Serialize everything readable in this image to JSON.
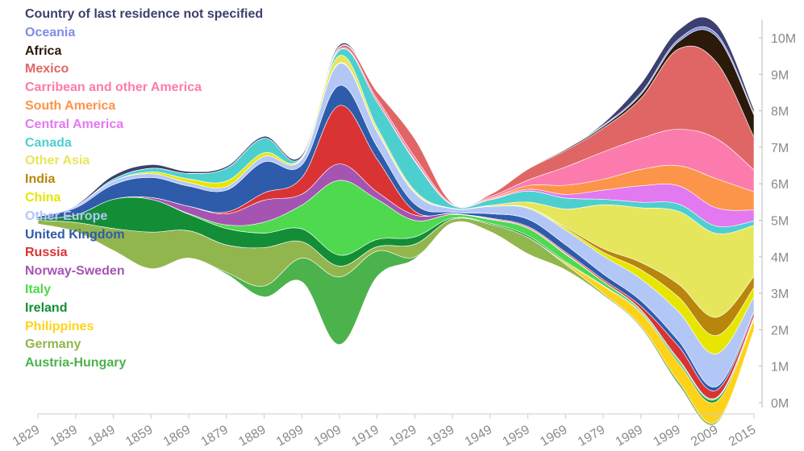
{
  "chart_data": {
    "type": "area",
    "layout": "streamgraph",
    "x": [
      "1829",
      "1839",
      "1849",
      "1859",
      "1869",
      "1879",
      "1889",
      "1899",
      "1909",
      "1919",
      "1929",
      "1939",
      "1949",
      "1959",
      "1969",
      "1979",
      "1989",
      "1999",
      "2009",
      "2015"
    ],
    "y_ticks": [
      "0M",
      "1M",
      "2M",
      "3M",
      "4M",
      "5M",
      "6M",
      "7M",
      "8M",
      "9M",
      "10M"
    ],
    "ylim": [
      0,
      10.5
    ],
    "legend_placement": "top-left",
    "series": [
      {
        "name": "Austria-Hungary",
        "color": "#4cb24c",
        "values": [
          0,
          0,
          0,
          0,
          0,
          0.05,
          0.3,
          0.65,
          1.85,
          0.7,
          0.05,
          0,
          0,
          0,
          0,
          0,
          0,
          0,
          0,
          0
        ]
      },
      {
        "name": "Germany",
        "color": "#92b64e",
        "values": [
          0.1,
          0.25,
          0.6,
          1.0,
          0.75,
          0.75,
          1.05,
          0.45,
          0.3,
          0.12,
          0.35,
          0.1,
          0.2,
          0.45,
          0.15,
          0.05,
          0.05,
          0.1,
          0.05,
          0.02
        ]
      },
      {
        "name": "Philippines",
        "color": "#ffd21a",
        "values": [
          0,
          0,
          0,
          0,
          0,
          0,
          0,
          0,
          0,
          0,
          0,
          0,
          0,
          0,
          0.05,
          0.2,
          0.35,
          0.5,
          0.55,
          0.3
        ]
      },
      {
        "name": "Ireland",
        "color": "#138e36",
        "values": [
          0.05,
          0.2,
          0.8,
          0.9,
          0.45,
          0.45,
          0.4,
          0.35,
          0.3,
          0.2,
          0.2,
          0.03,
          0.03,
          0.05,
          0.03,
          0.02,
          0.03,
          0.05,
          0.07,
          0.04
        ]
      },
      {
        "name": "Italy",
        "color": "#4ed94e",
        "values": [
          0,
          0,
          0,
          0,
          0.02,
          0.1,
          0.3,
          0.65,
          2.05,
          1.1,
          0.45,
          0.1,
          0.1,
          0.2,
          0.2,
          0.1,
          0.05,
          0.05,
          0.03,
          0.02
        ]
      },
      {
        "name": "Norway-Sweden",
        "color": "#a554b2",
        "values": [
          0,
          0,
          0,
          0.05,
          0.2,
          0.3,
          0.6,
          0.3,
          0.45,
          0.2,
          0.15,
          0.02,
          0.02,
          0.02,
          0.02,
          0.01,
          0.01,
          0.01,
          0.01,
          0.01
        ]
      },
      {
        "name": "Russia",
        "color": "#d93333",
        "values": [
          0,
          0,
          0,
          0,
          0,
          0.05,
          0.2,
          0.45,
          1.6,
          0.9,
          0.1,
          0.01,
          0.02,
          0.03,
          0.04,
          0.05,
          0.1,
          0.35,
          0.2,
          0.1
        ]
      },
      {
        "name": "United Kingdom",
        "color": "#2f5bab",
        "values": [
          0.05,
          0.2,
          0.4,
          0.55,
          0.55,
          0.6,
          0.85,
          0.35,
          0.55,
          0.35,
          0.2,
          0.03,
          0.12,
          0.2,
          0.2,
          0.15,
          0.15,
          0.15,
          0.1,
          0.05
        ]
      },
      {
        "name": "Other Europe",
        "color": "#b3c7f7",
        "values": [
          0,
          0.05,
          0.1,
          0.1,
          0.1,
          0.1,
          0.15,
          0.15,
          0.6,
          0.4,
          0.3,
          0.1,
          0.2,
          0.3,
          0.4,
          0.5,
          0.6,
          0.8,
          0.9,
          0.4
        ]
      },
      {
        "name": "China",
        "color": "#e6e600",
        "values": [
          0,
          0,
          0,
          0.05,
          0.1,
          0.15,
          0.1,
          0.02,
          0.02,
          0.02,
          0.02,
          0,
          0,
          0.02,
          0.05,
          0.1,
          0.25,
          0.4,
          0.5,
          0.25
        ]
      },
      {
        "name": "India",
        "color": "#b8860b",
        "values": [
          0,
          0,
          0,
          0,
          0,
          0,
          0,
          0,
          0,
          0,
          0,
          0,
          0,
          0,
          0.03,
          0.1,
          0.2,
          0.35,
          0.5,
          0.3
        ]
      },
      {
        "name": "Other Asia",
        "color": "#e6e65c",
        "values": [
          0,
          0,
          0,
          0,
          0,
          0,
          0,
          0.03,
          0.2,
          0.1,
          0.05,
          0.01,
          0.03,
          0.15,
          0.5,
          1.2,
          1.5,
          2.0,
          2.3,
          1.4
        ]
      },
      {
        "name": "Canada",
        "color": "#4ecfcf",
        "values": [
          0,
          0,
          0.05,
          0.1,
          0.15,
          0.35,
          0.4,
          0.02,
          0.15,
          0.7,
          0.8,
          0.08,
          0.15,
          0.3,
          0.3,
          0.15,
          0.15,
          0.2,
          0.2,
          0.12
        ]
      },
      {
        "name": "Central America",
        "color": "#e279f0",
        "values": [
          0,
          0,
          0,
          0,
          0,
          0,
          0,
          0,
          0,
          0,
          0,
          0,
          0.01,
          0.05,
          0.1,
          0.25,
          0.45,
          0.5,
          0.5,
          0.3
        ]
      },
      {
        "name": "South America",
        "color": "#fc9549",
        "values": [
          0,
          0,
          0,
          0,
          0,
          0,
          0,
          0,
          0,
          0,
          0.02,
          0.01,
          0.03,
          0.1,
          0.25,
          0.3,
          0.45,
          0.55,
          0.8,
          0.5
        ]
      },
      {
        "name": "Carribean and other America",
        "color": "#fc7bad",
        "values": [
          0,
          0,
          0,
          0,
          0,
          0,
          0,
          0,
          0.02,
          0.08,
          0.1,
          0.02,
          0.05,
          0.15,
          0.5,
          0.75,
          0.85,
          1.0,
          1.1,
          0.6
        ]
      },
      {
        "name": "Mexico",
        "color": "#e06666",
        "values": [
          0,
          0,
          0,
          0,
          0,
          0,
          0,
          0,
          0.05,
          0.2,
          0.5,
          0.03,
          0.06,
          0.3,
          0.45,
          0.65,
          1.1,
          2.2,
          2.1,
          0.9
        ]
      },
      {
        "name": "Africa",
        "color": "#2b1a0a",
        "values": [
          0,
          0,
          0,
          0,
          0,
          0,
          0,
          0,
          0,
          0,
          0,
          0,
          0,
          0.01,
          0.03,
          0.05,
          0.1,
          0.2,
          0.7,
          0.6
        ]
      },
      {
        "name": "Oceania",
        "color": "#7f8ce8",
        "values": [
          0,
          0,
          0,
          0,
          0,
          0,
          0,
          0,
          0.02,
          0.02,
          0.02,
          0,
          0,
          0.01,
          0.02,
          0.03,
          0.05,
          0.07,
          0.08,
          0.05
        ]
      },
      {
        "name": "Country of last residence not specified",
        "color": "#3d3f6e",
        "values": [
          0,
          0.02,
          0.1,
          0.1,
          0.05,
          0.05,
          0.05,
          0.05,
          0.05,
          0,
          0,
          0,
          0,
          0,
          0,
          0.05,
          0.25,
          0.25,
          0.25,
          0.1
        ]
      }
    ]
  }
}
